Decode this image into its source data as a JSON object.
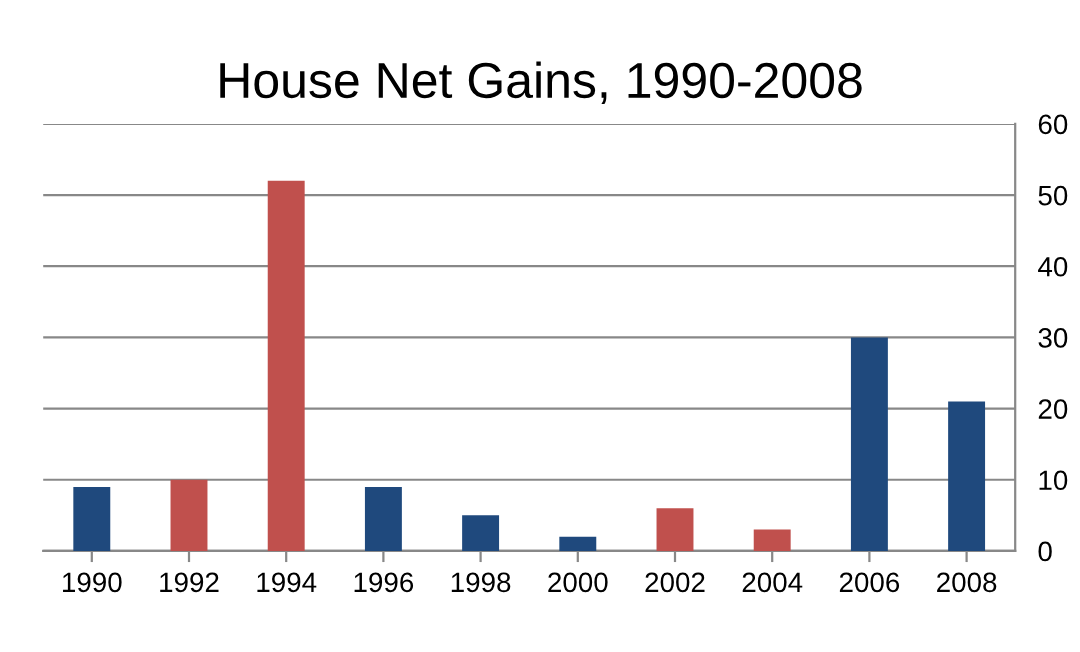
{
  "chart_data": {
    "type": "bar",
    "title": "House Net Gains, 1990-2008",
    "categories": [
      "1990",
      "1992",
      "1994",
      "1996",
      "1998",
      "2000",
      "2002",
      "2004",
      "2006",
      "2008"
    ],
    "values": [
      9,
      10,
      52,
      9,
      5,
      2,
      6,
      3,
      30,
      21
    ],
    "colors": [
      "#1f497d",
      "#c0504d",
      "#c0504d",
      "#1f497d",
      "#1f497d",
      "#1f497d",
      "#c0504d",
      "#c0504d",
      "#1f497d",
      "#1f497d"
    ],
    "ylim": [
      0,
      60
    ],
    "yticks": [
      0,
      10,
      20,
      30,
      40,
      50,
      60
    ],
    "grid": "y",
    "legend": false
  }
}
